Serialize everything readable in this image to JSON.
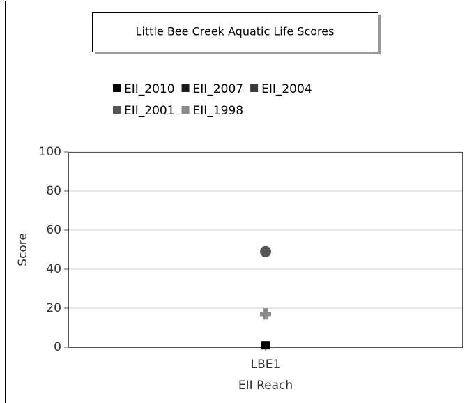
{
  "chart_data": {
    "type": "scatter",
    "title": "Little Bee Creek Aquatic Life Scores",
    "x_label": "EII Reach",
    "y_label": "Score",
    "categories": [
      "LBE1"
    ],
    "series": [
      {
        "name": "EII_2010",
        "color": "#000000",
        "marker": "square",
        "values": [
          1
        ]
      },
      {
        "name": "EII_2007",
        "color": "#1c1c1c",
        "marker": "square",
        "values": [
          null
        ]
      },
      {
        "name": "EII_2004",
        "color": "#383838",
        "marker": "square",
        "values": [
          null
        ]
      },
      {
        "name": "EII_2001",
        "color": "#555555",
        "marker": "circle",
        "values": [
          49
        ]
      },
      {
        "name": "EII_1998",
        "color": "#8a8a8a",
        "marker": "cross",
        "values": [
          17
        ]
      }
    ],
    "ylim": [
      0,
      100
    ],
    "yticks": [
      0,
      20,
      40,
      60,
      80,
      100
    ],
    "grid": true
  }
}
